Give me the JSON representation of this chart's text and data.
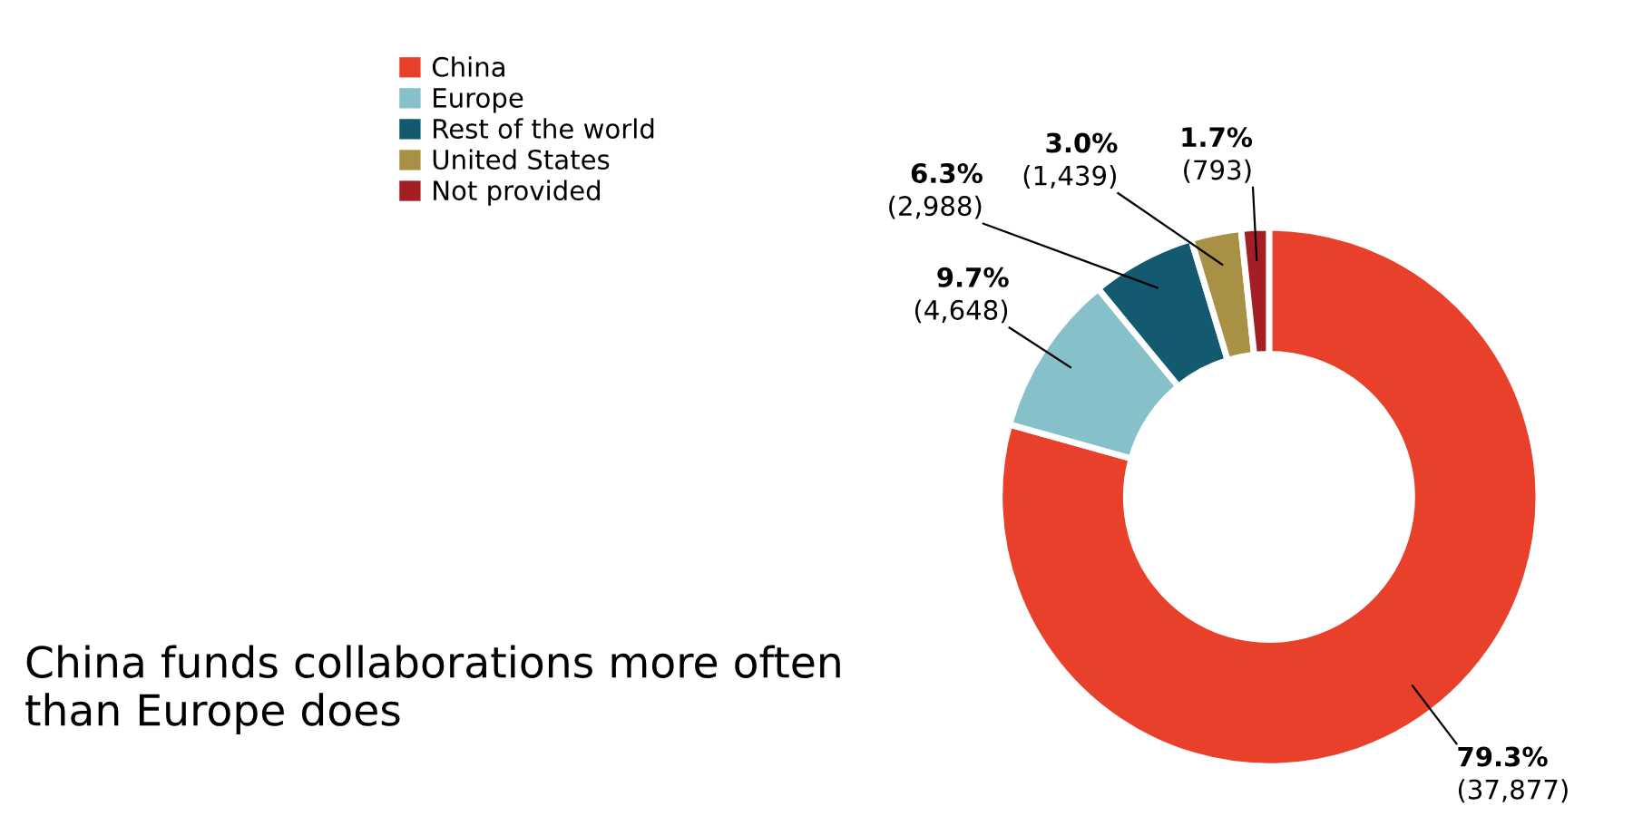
{
  "chart_data": {
    "type": "donut",
    "title": "China funds collaborations more often than Europe does",
    "categories": [
      "China",
      "Europe",
      "Rest of the world",
      "United States",
      "Not provided"
    ],
    "values": [
      37877,
      4648,
      2988,
      1439,
      793
    ],
    "colors": [
      "#e8402a",
      "#86c0c9",
      "#135a70",
      "#a89045",
      "#a31f24"
    ],
    "value_labels": [
      "79.3%\n(37,877)",
      "9.7%\n(4,648)",
      "6.3%\n(2,988)",
      "3.0%\n(1,439)",
      "1.7%\n(793)"
    ],
    "legend": "top left"
  }
}
